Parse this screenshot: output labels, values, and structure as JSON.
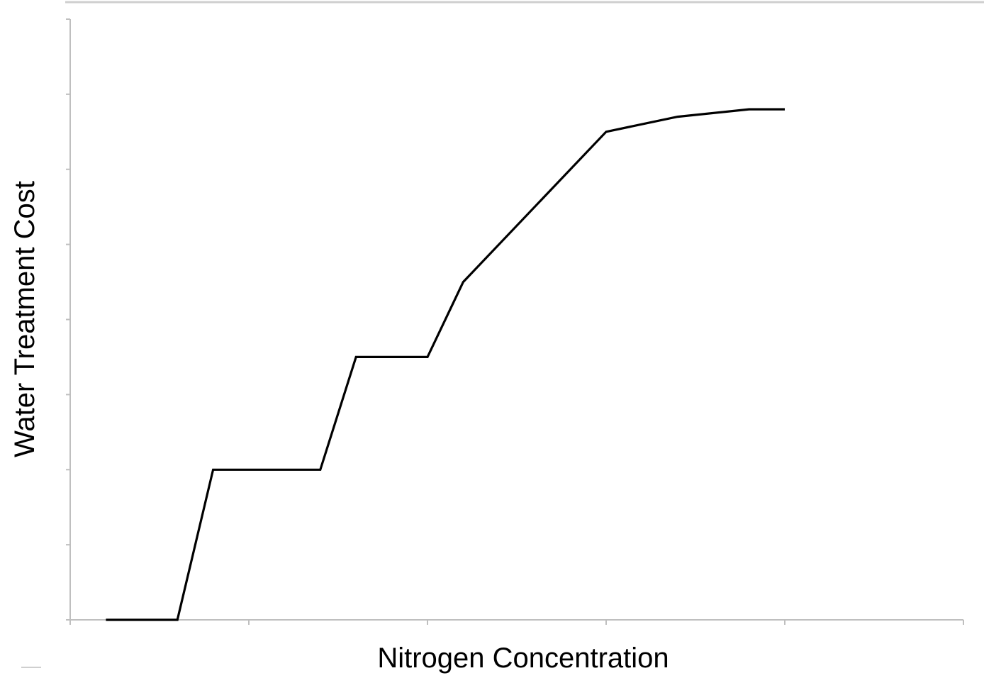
{
  "chart_data": {
    "type": "line",
    "title": "",
    "xlabel": "Nitrogen Concentration",
    "ylabel": "Water Treatment Cost",
    "xlim": [
      0,
      5
    ],
    "ylim": [
      0,
      8
    ],
    "x_tick_values": [
      0,
      1,
      2,
      3,
      4,
      5
    ],
    "y_tick_values": [
      0,
      1,
      2,
      3,
      4,
      5,
      6,
      7,
      8
    ],
    "tick_labels_shown": false,
    "grid": false,
    "legend": "none",
    "line_color": "#000000",
    "axis_color": "#bfbfbf",
    "series": [
      {
        "x": [
          0.2,
          0.6,
          0.8,
          1.4,
          1.6,
          2.0,
          2.2,
          2.6,
          3.0,
          3.4,
          3.8,
          4.0
        ],
        "y": [
          0,
          0,
          2.0,
          2.0,
          3.5,
          3.5,
          4.5,
          5.5,
          6.5,
          6.7,
          6.8,
          6.8
        ]
      }
    ]
  }
}
